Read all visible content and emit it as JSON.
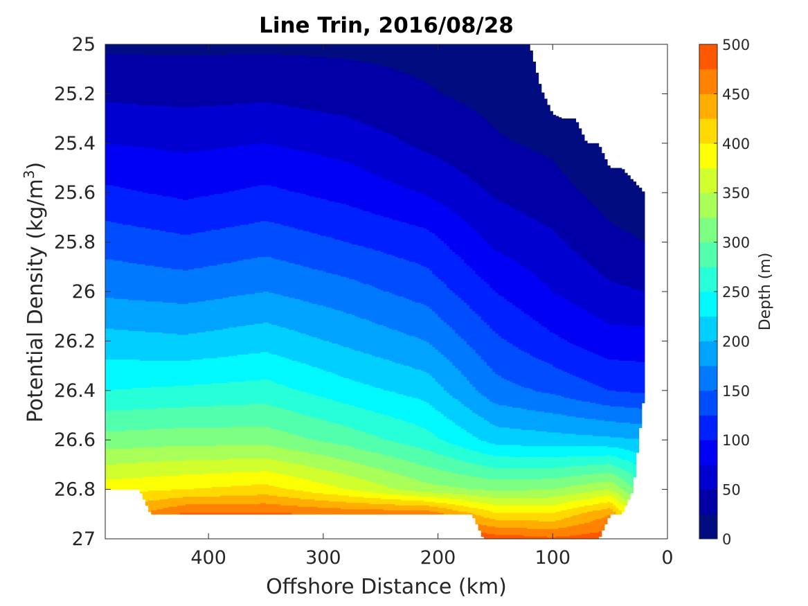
{
  "chart_data": {
    "type": "contour",
    "title": "Line Trin, 2016/08/28",
    "xlabel": "Offshore Distance (km)",
    "ylabel": "Potential Density (kg/m",
    "ylabel_sup": "3",
    "ylabel_end": ")",
    "xlim": [
      490,
      0
    ],
    "ylim": [
      25,
      27
    ],
    "x_reversed": true,
    "y_reversed": true,
    "x_ticks": [
      400,
      300,
      200,
      100,
      0
    ],
    "y_ticks": [
      25,
      25.2,
      25.4,
      25.6,
      25.8,
      26,
      26.2,
      26.4,
      26.6,
      26.8,
      27
    ],
    "y_tick_labels": [
      "25",
      "25.2",
      "25.4",
      "25.6",
      "25.8",
      "26",
      "26.2",
      "26.4",
      "26.6",
      "26.8",
      "27"
    ],
    "colorbar": {
      "label": "Depth (m)",
      "min": 0,
      "max": 500,
      "step": 25,
      "ticks": [
        0,
        50,
        100,
        150,
        200,
        250,
        300,
        350,
        400,
        450,
        500
      ],
      "colors": [
        "#000c80",
        "#0000a6",
        "#0000d0",
        "#0000f5",
        "#0021ff",
        "#004dff",
        "#0079ff",
        "#00a4ff",
        "#00cfff",
        "#00f9ff",
        "#27ffd8",
        "#52ffad",
        "#7cff83",
        "#a7ff58",
        "#d1ff2e",
        "#fcff03",
        "#ffd900",
        "#ffae00",
        "#ff8300",
        "#ff5800",
        "#ff2d00",
        "#ff0000",
        "#d50000",
        "#a80000"
      ]
    },
    "data_x_km": [
      490,
      480,
      460,
      450,
      440,
      420,
      410,
      400,
      390,
      380,
      370,
      360,
      350,
      340,
      330,
      320,
      310,
      300,
      290,
      280,
      270,
      260,
      250,
      240,
      230,
      220,
      210,
      200,
      190,
      180,
      170,
      160,
      150,
      140,
      130,
      120,
      110,
      100,
      90,
      80,
      70,
      60,
      50,
      40,
      30,
      20
    ],
    "top_density": [
      25,
      25,
      25,
      25,
      25,
      25,
      25,
      25,
      25,
      25,
      25,
      25,
      25,
      25,
      25,
      25,
      25,
      25,
      25,
      25,
      25,
      25,
      25,
      25,
      25,
      25,
      25,
      25,
      25,
      25,
      25,
      25,
      25,
      25,
      25,
      25,
      25.18,
      25.28,
      25.3,
      25.3,
      25.4,
      25.4,
      25.5,
      25.5,
      25.55,
      25.6
    ],
    "bottom_density": [
      26.8,
      26.8,
      26.8,
      26.9,
      26.9,
      26.9,
      26.9,
      26.9,
      26.9,
      26.9,
      26.9,
      26.9,
      26.9,
      26.9,
      26.9,
      26.9,
      26.9,
      26.9,
      26.9,
      26.9,
      26.9,
      26.9,
      26.9,
      26.9,
      26.9,
      26.9,
      26.9,
      26.9,
      26.9,
      26.9,
      26.9,
      27,
      27,
      27,
      27,
      27,
      27,
      27,
      27,
      27,
      27,
      27,
      26.9,
      26.9,
      26.8,
      26.4
    ],
    "depth_profiles": [
      {
        "x": 490,
        "density": [
          25,
          25.2,
          25.4,
          25.6,
          25.8,
          26,
          26.2,
          26.4,
          26.6,
          26.8
        ],
        "depth": [
          20,
          45,
          75,
          105,
          140,
          170,
          210,
          250,
          310,
          390
        ]
      },
      {
        "x": 420,
        "density": [
          25,
          25.2,
          25.4,
          25.6,
          25.8,
          26,
          26.2,
          26.4,
          26.6,
          26.8,
          26.9
        ],
        "depth": [
          20,
          42,
          70,
          95,
          130,
          165,
          205,
          255,
          315,
          400,
          480
        ]
      },
      {
        "x": 350,
        "density": [
          25,
          25.2,
          25.4,
          25.6,
          25.8,
          26,
          26.2,
          26.4,
          26.6,
          26.8,
          26.9
        ],
        "depth": [
          20,
          45,
          75,
          105,
          140,
          175,
          215,
          260,
          315,
          410,
          480
        ]
      },
      {
        "x": 280,
        "density": [
          25,
          25.2,
          25.4,
          25.6,
          25.8,
          26,
          26.2,
          26.4,
          26.6,
          26.8,
          26.9
        ],
        "depth": [
          20,
          37,
          65,
          92,
          125,
          160,
          195,
          235,
          290,
          375,
          470
        ]
      },
      {
        "x": 210,
        "density": [
          25,
          25.2,
          25.4,
          25.6,
          25.8,
          26,
          26.2,
          26.4,
          26.6,
          26.8,
          26.9
        ],
        "depth": [
          18,
          27,
          45,
          73,
          110,
          140,
          175,
          215,
          260,
          335,
          470
        ]
      },
      {
        "x": 150,
        "density": [
          25,
          25.2,
          25.4,
          25.6,
          25.8,
          26,
          26.2,
          26.4,
          26.6,
          26.8,
          27
        ],
        "depth": [
          10,
          18,
          28,
          47,
          70,
          100,
          130,
          160,
          215,
          320,
          490
        ]
      },
      {
        "x": 100,
        "density": [
          25.28,
          25.4,
          25.6,
          25.8,
          26,
          26.2,
          26.4,
          26.6,
          26.8,
          27
        ],
        "depth": [
          10,
          20,
          35,
          55,
          75,
          105,
          145,
          210,
          325,
          480
        ]
      },
      {
        "x": 50,
        "density": [
          25.5,
          25.6,
          25.8,
          26,
          26.2,
          26.4,
          26.6,
          26.8,
          26.9
        ],
        "depth": [
          5,
          15,
          32,
          55,
          85,
          125,
          205,
          350,
          450
        ]
      },
      {
        "x": 20,
        "density": [
          25.6,
          25.8,
          26,
          26.2,
          26.4
        ],
        "depth": [
          8,
          25,
          50,
          85,
          120
        ]
      }
    ]
  }
}
